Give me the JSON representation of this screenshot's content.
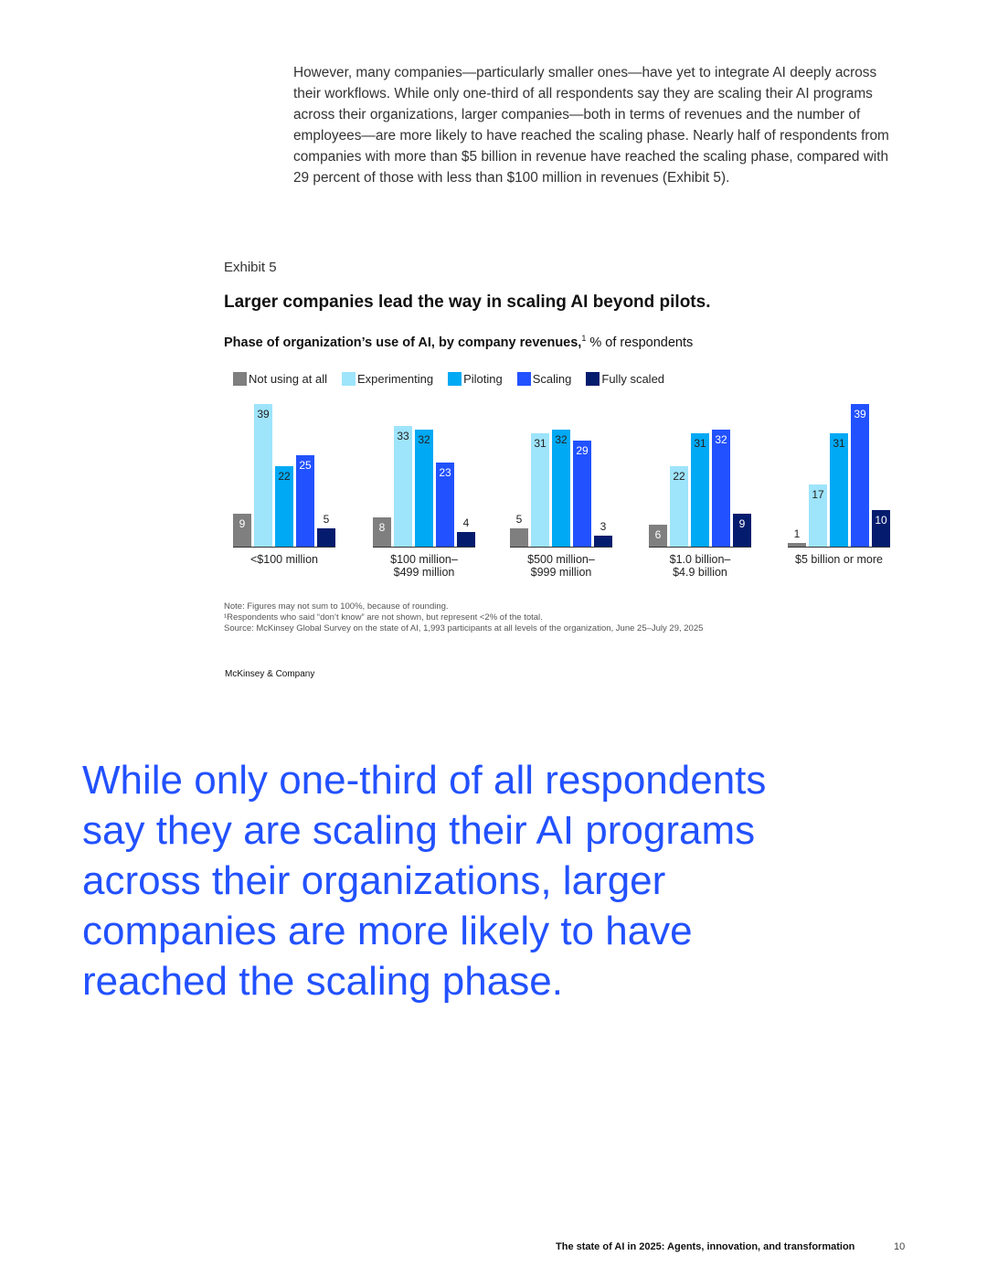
{
  "intro_text": "However, many companies—particularly smaller ones—have yet to integrate AI deeply across their workflows. While only one-third of all respondents say they are scaling their AI programs across their organizations, larger companies—both in terms of revenues and the number of employees—are more likely to have reached the scaling phase. Nearly half of respondents from companies with more than $5 billion in revenue have reached the scaling phase, compared with 29 percent of those with less than $100 million in revenues (Exhibit 5).",
  "exhibit": {
    "label": "Exhibit 5",
    "title": "Larger companies lead the way in scaling AI beyond pilots.",
    "subtitle_bold": "Phase of organization’s use of AI, by company revenues,",
    "subtitle_sup": "1",
    "subtitle_rest": " % of respondents"
  },
  "chart_data": {
    "type": "bar",
    "title": "Larger companies lead the way in scaling AI beyond pilots.",
    "ylabel": "% of respondents",
    "categories": [
      [
        "<$100 million"
      ],
      [
        "$100 million–",
        "$499 million"
      ],
      [
        "$500 million–",
        "$999 million"
      ],
      [
        "$1.0 billion–",
        "$4.9 billion"
      ],
      [
        "$5 billion or more"
      ]
    ],
    "series": [
      {
        "name": "Not using at all",
        "color": "#7f7f7f",
        "values": [
          9,
          8,
          5,
          6,
          1
        ]
      },
      {
        "name": "Experimenting",
        "color": "#9ee4fb",
        "values": [
          39,
          33,
          31,
          22,
          17
        ]
      },
      {
        "name": "Piloting",
        "color": "#00a9f4",
        "values": [
          22,
          32,
          32,
          31,
          31
        ]
      },
      {
        "name": "Scaling",
        "color": "#2251ff",
        "values": [
          25,
          23,
          29,
          32,
          39
        ]
      },
      {
        "name": "Fully scaled",
        "color": "#051c6e",
        "values": [
          5,
          4,
          3,
          9,
          10
        ]
      }
    ],
    "ylim": [
      0,
      40
    ],
    "grid": false,
    "legend": "top-left"
  },
  "notes": [
    "Note: Figures may not sum to 100%, because of rounding.",
    "¹Respondents who said “don’t know” are not shown, but represent <2% of the total.",
    "Source: McKinsey Global Survey on the state of AI, 1,993 participants at all levels of the organization, June 25–July 29, 2025"
  ],
  "brand": "McKinsey & Company",
  "pullquote": "While only one-third of all respondents say they are scaling their AI programs across their organizations, larger companies are more likely to have reached the scaling phase.",
  "footer": {
    "title": "The state of AI in 2025: Agents, innovation, and transformation",
    "page": "10"
  }
}
